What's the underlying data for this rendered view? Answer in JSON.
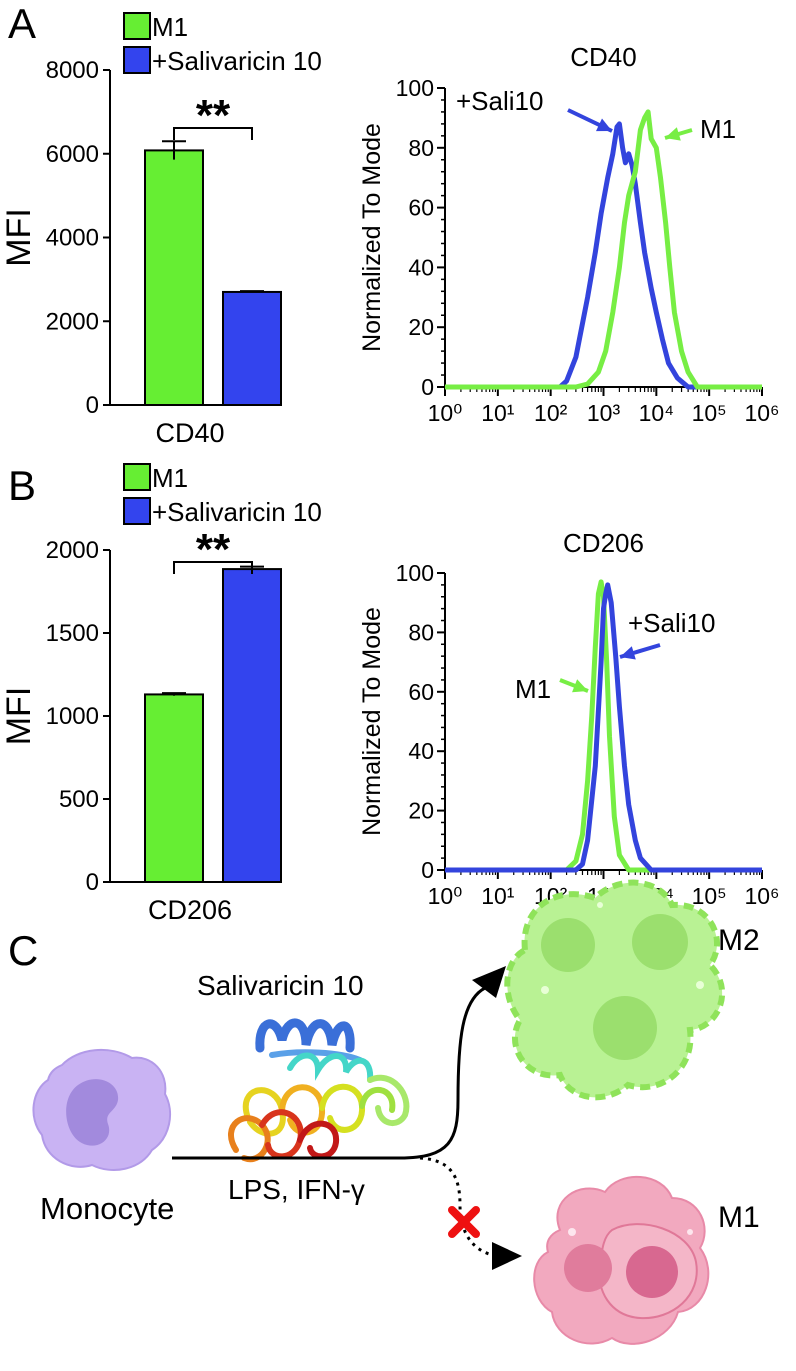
{
  "panels": {
    "A": {
      "letter": "A"
    },
    "B": {
      "letter": "B"
    },
    "C": {
      "letter": "C"
    }
  },
  "colors": {
    "m1": "#66ee33",
    "sali": "#3344ee",
    "m1_line": "#77ee44",
    "sali_line": "#3344dd",
    "m2_cell": "#b6f08a",
    "m1_cell": "#f2a9bf",
    "monocyte": "#c7b0f2",
    "block": "#ee1111"
  },
  "legend": {
    "m1_label": "M1",
    "sali_label": "+Salivaricin 10"
  },
  "diagram": {
    "protein_title": "Salivaricin 10",
    "monocyte_label": "Monocyte",
    "stimulus_label": "LPS, IFN-γ",
    "m2_label": "M2",
    "m1_label": "M1"
  },
  "chart_data": [
    {
      "panel": "A",
      "type": "bar",
      "categories": [
        "M1",
        "+Salivaricin 10"
      ],
      "values": [
        6080,
        2700
      ],
      "errors": [
        220,
        20
      ],
      "xlabel": "CD40",
      "ylabel": "MFI",
      "ylim": [
        0,
        8000
      ],
      "yticks": [
        "0",
        "2000",
        "4000",
        "6000",
        "8000"
      ],
      "significance": "**"
    },
    {
      "panel": "A",
      "type": "line",
      "title": "CD40",
      "xscale": "log",
      "xticks": [
        "10⁰",
        "10¹",
        "10²",
        "10³",
        "10⁴",
        "10⁵",
        "10⁶"
      ],
      "ylabel": "Normalized To Mode",
      "ylim": [
        0,
        100
      ],
      "yticks": [
        "0",
        "20",
        "40",
        "60",
        "80",
        "100"
      ],
      "series": [
        {
          "name": "+Sali10",
          "color_key": "sali_line",
          "points": [
            [
              1,
              0
            ],
            [
              150,
              0
            ],
            [
              200,
              2
            ],
            [
              300,
              10
            ],
            [
              500,
              30
            ],
            [
              700,
              45
            ],
            [
              900,
              58
            ],
            [
              1200,
              70
            ],
            [
              1500,
              78
            ],
            [
              1800,
              87
            ],
            [
              2000,
              88
            ],
            [
              2300,
              80
            ],
            [
              2600,
              75
            ],
            [
              3000,
              78
            ],
            [
              3500,
              74
            ],
            [
              4000,
              68
            ],
            [
              5000,
              55
            ],
            [
              6000,
              45
            ],
            [
              8000,
              33
            ],
            [
              10000,
              25
            ],
            [
              13000,
              16
            ],
            [
              17000,
              8
            ],
            [
              25000,
              3
            ],
            [
              40000,
              0
            ],
            [
              1000000,
              0
            ]
          ]
        },
        {
          "name": "M1",
          "color_key": "m1_line",
          "points": [
            [
              1,
              0
            ],
            [
              300,
              0
            ],
            [
              500,
              1
            ],
            [
              800,
              5
            ],
            [
              1100,
              12
            ],
            [
              1500,
              25
            ],
            [
              2000,
              40
            ],
            [
              2500,
              55
            ],
            [
              3000,
              64
            ],
            [
              4000,
              72
            ],
            [
              5000,
              86
            ],
            [
              6000,
              90
            ],
            [
              7000,
              92
            ],
            [
              8000,
              83
            ],
            [
              10000,
              80
            ],
            [
              12000,
              70
            ],
            [
              15000,
              55
            ],
            [
              18000,
              40
            ],
            [
              22000,
              25
            ],
            [
              30000,
              12
            ],
            [
              40000,
              5
            ],
            [
              60000,
              0
            ],
            [
              1000000,
              0
            ]
          ]
        }
      ],
      "annotations": [
        "+Sali10",
        "M1"
      ]
    },
    {
      "panel": "B",
      "type": "bar",
      "categories": [
        "M1",
        "+Salivaricin 10"
      ],
      "values": [
        1130,
        1885
      ],
      "errors": [
        8,
        15
      ],
      "xlabel": "CD206",
      "ylabel": "MFI",
      "ylim": [
        0,
        2000
      ],
      "yticks": [
        "0",
        "500",
        "1000",
        "1500",
        "2000"
      ],
      "significance": "**"
    },
    {
      "panel": "B",
      "type": "line",
      "title": "CD206",
      "xscale": "log",
      "xticks": [
        "10⁰",
        "10¹",
        "10²",
        "10³",
        "10⁴",
        "10⁵",
        "10⁶"
      ],
      "ylabel": "Normalized To Mode",
      "ylim": [
        0,
        100
      ],
      "yticks": [
        "0",
        "20",
        "40",
        "60",
        "80",
        "100"
      ],
      "series": [
        {
          "name": "M1",
          "color_key": "m1_line",
          "points": [
            [
              1,
              0
            ],
            [
              200,
              0
            ],
            [
              300,
              3
            ],
            [
              400,
              12
            ],
            [
              500,
              30
            ],
            [
              600,
              52
            ],
            [
              700,
              75
            ],
            [
              800,
              93
            ],
            [
              900,
              97
            ],
            [
              1000,
              92
            ],
            [
              1150,
              70
            ],
            [
              1300,
              45
            ],
            [
              1600,
              18
            ],
            [
              2000,
              5
            ],
            [
              3000,
              0
            ],
            [
              1000000,
              0
            ]
          ]
        },
        {
          "name": "+Sali10",
          "color_key": "sali_line",
          "points": [
            [
              1,
              0
            ],
            [
              300,
              0
            ],
            [
              400,
              2
            ],
            [
              500,
              10
            ],
            [
              700,
              35
            ],
            [
              900,
              70
            ],
            [
              1000,
              88
            ],
            [
              1100,
              93
            ],
            [
              1200,
              96
            ],
            [
              1400,
              90
            ],
            [
              1700,
              72
            ],
            [
              2000,
              55
            ],
            [
              2500,
              35
            ],
            [
              3000,
              22
            ],
            [
              4000,
              10
            ],
            [
              5000,
              4
            ],
            [
              8000,
              0
            ],
            [
              1000000,
              0
            ]
          ]
        }
      ],
      "annotations": [
        "+Sali10",
        "M1"
      ]
    }
  ]
}
